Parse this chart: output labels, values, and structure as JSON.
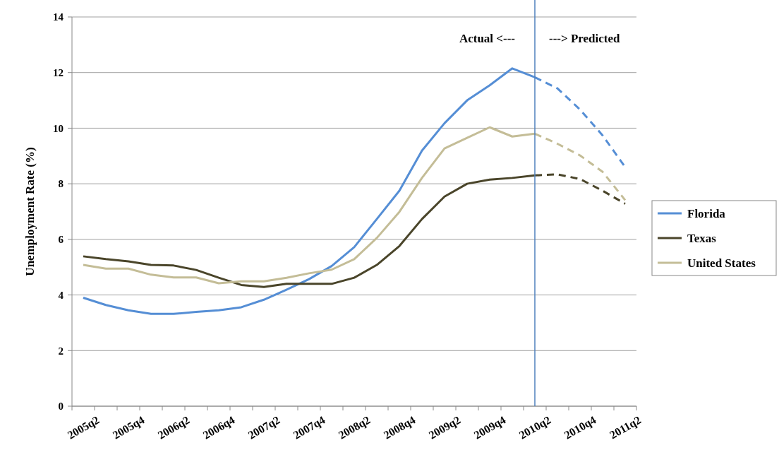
{
  "chart_data": {
    "type": "line",
    "ylabel": "Unemployment Rate (%)",
    "categories": [
      "2005q2",
      null,
      "2005q4",
      null,
      "2006q2",
      null,
      "2006q4",
      null,
      "2007q2",
      null,
      "2007q4",
      null,
      "2008q2",
      null,
      "2008q4",
      null,
      "2009q2",
      null,
      "2009q4",
      null,
      "2010q2",
      null,
      "2010q4",
      null,
      "2011q2"
    ],
    "series": [
      {
        "name": "Florida",
        "color": "#558ed5",
        "line_style": "solid",
        "values": [
          3.9,
          3.64,
          3.45,
          3.32,
          3.32,
          3.39,
          3.45,
          3.56,
          3.83,
          4.19,
          4.57,
          5.04,
          5.72,
          6.73,
          7.75,
          9.19,
          10.18,
          11.0,
          11.54,
          12.15,
          11.83,
          null,
          null,
          null,
          null
        ]
      },
      {
        "name": "Texas",
        "color": "#4a452a",
        "line_style": "solid",
        "values": [
          5.39,
          5.29,
          5.21,
          5.08,
          5.06,
          4.9,
          4.62,
          4.36,
          4.29,
          4.4,
          4.4,
          4.4,
          4.62,
          5.08,
          5.76,
          6.73,
          7.54,
          8.0,
          8.15,
          8.21,
          8.3,
          null,
          null,
          null,
          null
        ]
      },
      {
        "name": "United States",
        "color": "#c4bd97",
        "line_style": "solid",
        "values": [
          5.08,
          4.95,
          4.95,
          4.73,
          4.63,
          4.63,
          4.42,
          4.49,
          4.49,
          4.62,
          4.78,
          4.91,
          5.29,
          6.05,
          6.99,
          8.21,
          9.27,
          9.65,
          10.03,
          9.7,
          9.8,
          null,
          null,
          null,
          null
        ]
      },
      {
        "color": "#558ed5",
        "line_style": "dashed",
        "values": [
          null,
          null,
          null,
          null,
          null,
          null,
          null,
          null,
          null,
          null,
          null,
          null,
          null,
          null,
          null,
          null,
          null,
          null,
          null,
          null,
          11.83,
          11.43,
          10.67,
          9.74,
          8.6
        ]
      },
      {
        "color": "#4a452a",
        "line_style": "dashed",
        "values": [
          null,
          null,
          null,
          null,
          null,
          null,
          null,
          null,
          null,
          null,
          null,
          null,
          null,
          null,
          null,
          null,
          null,
          null,
          null,
          null,
          8.3,
          8.34,
          8.17,
          7.75,
          7.28
        ]
      },
      {
        "color": "#c4bd97",
        "line_style": "dashed",
        "values": [
          null,
          null,
          null,
          null,
          null,
          null,
          null,
          null,
          null,
          null,
          null,
          null,
          null,
          null,
          null,
          null,
          null,
          null,
          null,
          null,
          9.8,
          9.44,
          9.02,
          8.43,
          7.41
        ]
      }
    ],
    "ylim": [
      0,
      14
    ],
    "yticks": [
      0,
      2,
      4,
      6,
      8,
      10,
      12,
      14
    ],
    "grid": "y",
    "legend": "right",
    "ref_lines": [
      {
        "axis": "x",
        "value": "2010q2",
        "color": "#4f81bd"
      }
    ],
    "annotations": [
      "Actual <---",
      "---> Predicted"
    ]
  }
}
